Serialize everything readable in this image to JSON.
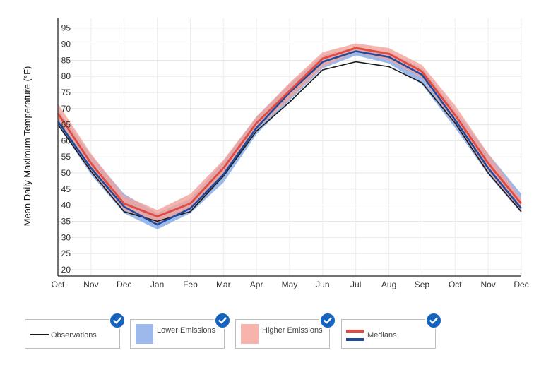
{
  "chart_data": {
    "type": "line",
    "ylabel": "Mean Daily Maximum Temperature (°F)",
    "xlabel": "",
    "categories": [
      "Oct",
      "Nov",
      "Dec",
      "Jan",
      "Feb",
      "Mar",
      "Apr",
      "May",
      "Jun",
      "Jul",
      "Aug",
      "Sep",
      "Oct",
      "Nov",
      "Dec"
    ],
    "yticks": [
      20,
      25,
      30,
      35,
      40,
      45,
      50,
      55,
      60,
      65,
      70,
      75,
      80,
      85,
      90,
      95
    ],
    "ylim": [
      18,
      98
    ],
    "grid": true,
    "series": [
      {
        "name": "Observations",
        "values": [
          65,
          50.5,
          38,
          35,
          38,
          49,
          63,
          72,
          82,
          84.5,
          83,
          78,
          65.5,
          50,
          38
        ]
      },
      {
        "name": "Lower Emissions",
        "values": [
          67,
          52,
          40,
          34.5,
          39.5,
          50,
          65,
          75,
          84.5,
          88,
          86.5,
          81,
          67,
          52.5,
          40
        ],
        "low": [
          65,
          49.5,
          37.5,
          32.5,
          37.5,
          47,
          62,
          72.5,
          82.5,
          86.5,
          84,
          77.5,
          64,
          49.5,
          37.5
        ],
        "high": [
          69.5,
          55.5,
          43.5,
          37.5,
          42,
          53.5,
          67.5,
          77.5,
          86.5,
          89,
          87.5,
          82.5,
          69.5,
          56,
          43.5
        ]
      },
      {
        "name": "Higher Emissions",
        "values": [
          68.5,
          53,
          40.5,
          36.5,
          40.5,
          51.5,
          65.5,
          75.5,
          85.5,
          88.8,
          87,
          81.5,
          68,
          53,
          40.5
        ],
        "low": [
          66,
          50.5,
          38.5,
          34.5,
          38.5,
          49,
          63.5,
          73,
          83,
          87.5,
          85,
          79.5,
          65.5,
          50.5,
          38
        ],
        "high": [
          71.5,
          56,
          43,
          38.5,
          43.5,
          54,
          67.5,
          78,
          87.5,
          90.2,
          88.8,
          83.5,
          71,
          56,
          42
        ]
      }
    ],
    "medians": {
      "lower": [
        66,
        51.5,
        39.5,
        34,
        39,
        49.5,
        64,
        75,
        84.5,
        87.8,
        86,
        80.5,
        66.5,
        51.5,
        39
      ],
      "higher": [
        68.5,
        53,
        40.5,
        36.5,
        40.5,
        51.5,
        65.5,
        75.5,
        85.5,
        88.8,
        87,
        81.5,
        68,
        53,
        40.5
      ]
    }
  },
  "colors": {
    "observations": "#1a1a1a",
    "lower_band": "#8aaee8",
    "higher_band": "#f2a39b",
    "lower_median": "#1f4a9c",
    "higher_median": "#e04a3f",
    "check": "#1565c0"
  },
  "legend": {
    "observations": "Observations",
    "lower": "Lower Emissions",
    "higher": "Higher Emissions",
    "medians": "Medians"
  }
}
